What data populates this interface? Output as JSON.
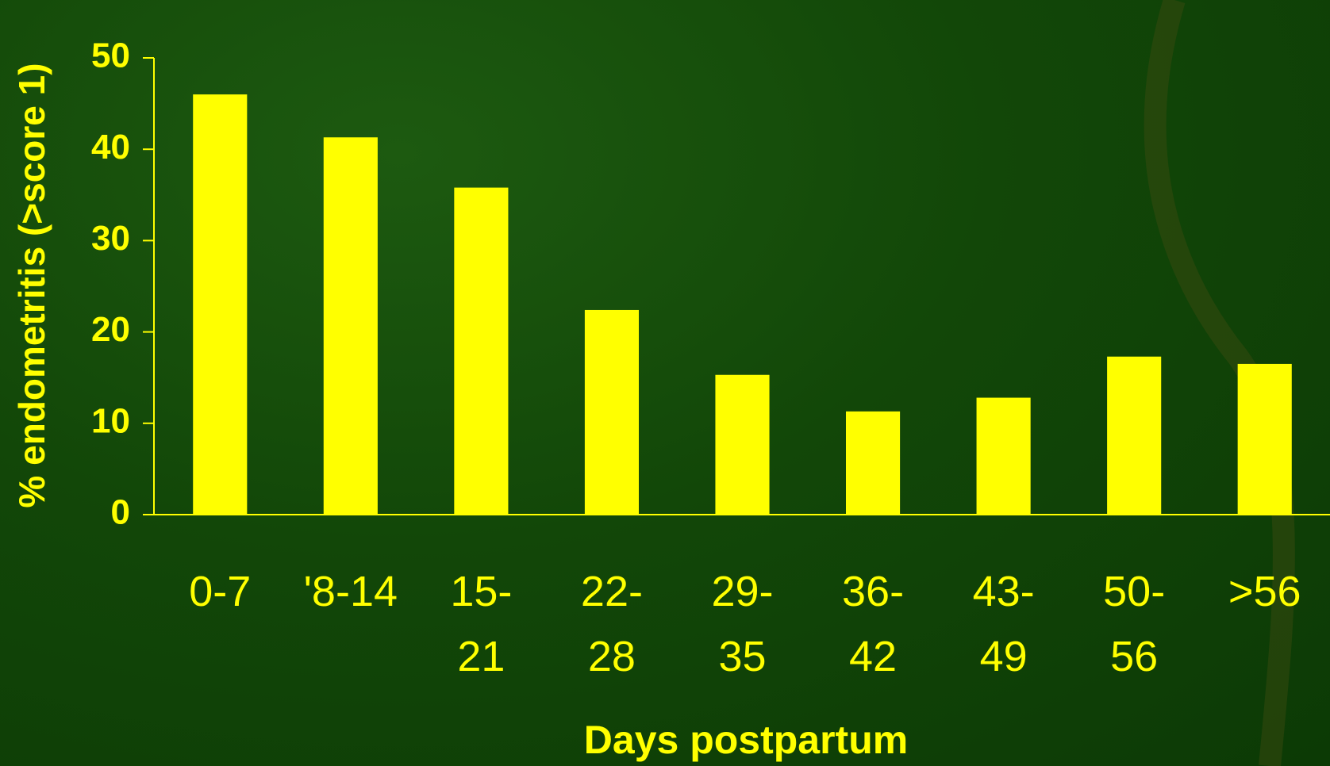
{
  "chart_data": {
    "type": "bar",
    "y_label": "% endometritis (>score 1)",
    "x_label": "Days postpartum",
    "categories": [
      "0-7",
      "'8-14",
      "15-\n21",
      "22-\n28",
      "29-\n35",
      "36-\n42",
      "43-\n49",
      "50-\n56",
      ">56"
    ],
    "values": [
      46,
      41.3,
      35.8,
      22.4,
      15.3,
      11.3,
      12.8,
      17.3,
      16.5
    ],
    "color": "#ffff00",
    "ylim": [
      0,
      50
    ],
    "yticks": [
      0,
      10,
      20,
      30,
      40,
      50
    ]
  }
}
